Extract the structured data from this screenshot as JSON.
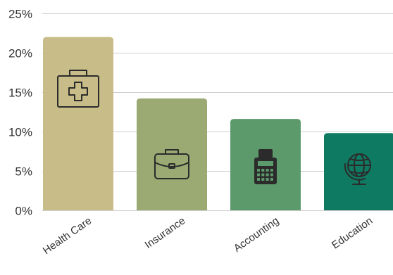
{
  "chart_data": {
    "type": "bar",
    "categories": [
      "Health Care",
      "Insurance",
      "Accounting",
      "Education"
    ],
    "values": [
      22,
      14.2,
      11.6,
      9.8
    ],
    "ylim": [
      0,
      25
    ],
    "yticks": [
      0,
      5,
      10,
      15,
      20,
      25
    ],
    "ytick_labels": [
      "0%",
      "5%",
      "10%",
      "15%",
      "20%",
      "25%"
    ],
    "grid": true,
    "bar_colors": [
      "#c8bd88",
      "#9aaa72",
      "#5c9a6c",
      "#0f7a62"
    ],
    "icons": [
      "first-aid-kit-icon",
      "briefcase-icon",
      "calculator-icon",
      "globe-icon"
    ],
    "title": "",
    "xlabel": "",
    "ylabel": ""
  }
}
